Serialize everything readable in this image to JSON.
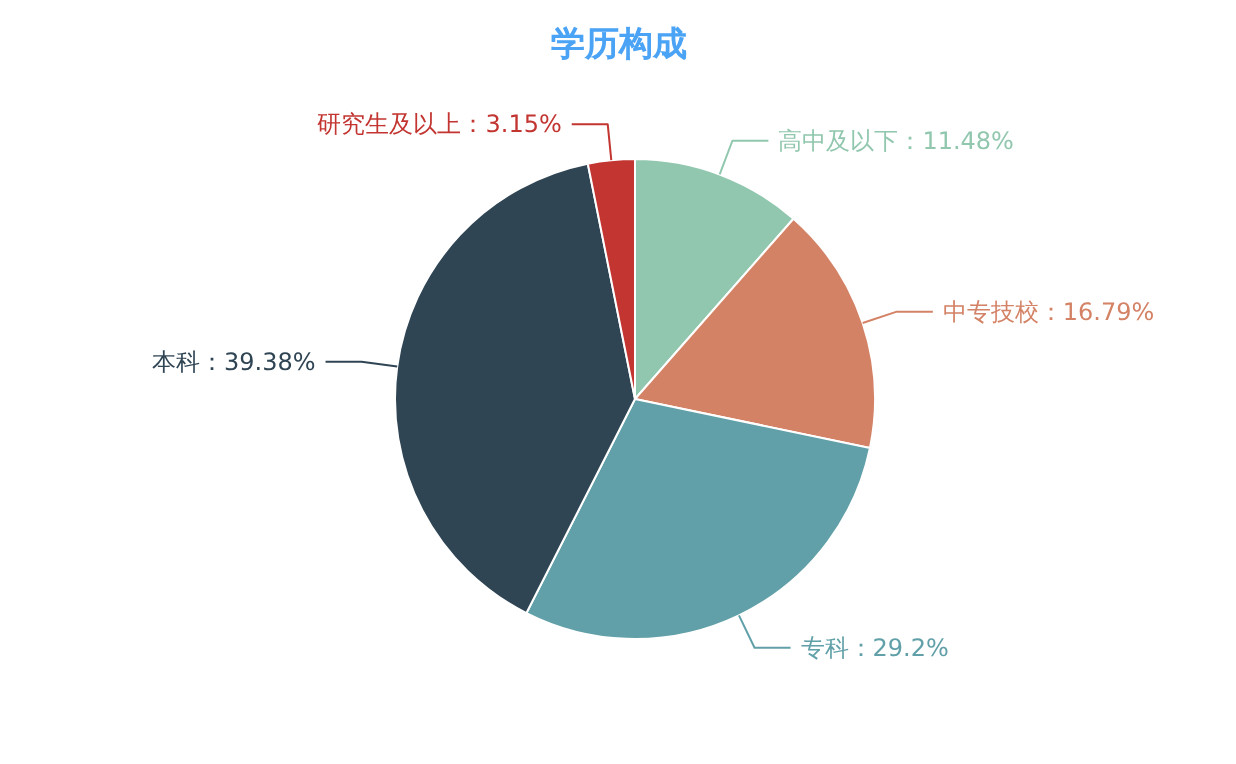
{
  "chart_data": {
    "type": "pie",
    "title": "学历构成",
    "categories": [
      "高中及以下",
      "中专技校",
      "专科",
      "本科",
      "研究生及以上"
    ],
    "values": [
      11.48,
      16.79,
      29.2,
      39.38,
      3.15
    ],
    "colors": [
      "#91c7ae",
      "#d48265",
      "#61a0a8",
      "#2f4554",
      "#c23531"
    ],
    "value_labels": [
      "11.48%",
      "16.79%",
      "29.2%",
      "39.38%",
      "3.15%"
    ]
  }
}
